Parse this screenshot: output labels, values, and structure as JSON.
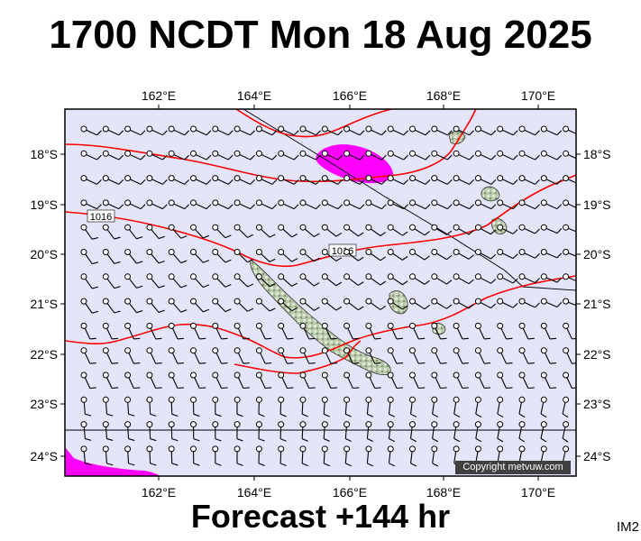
{
  "title": "1700 NCDT Mon 18 Aug 2025",
  "footer": "Forecast +144 hr",
  "tag": "IM2",
  "copyright": "Copyright metvuw.com",
  "axes": {
    "lon_ticks": [
      "162°E",
      "164°E",
      "166°E",
      "168°E",
      "170°E"
    ],
    "lat_ticks": [
      "18°S",
      "19°S",
      "20°S",
      "21°S",
      "22°S",
      "23°S",
      "24°S"
    ]
  },
  "isobar_labels": [
    "1016",
    "1016"
  ],
  "colors": {
    "sea": "#e4e4fa",
    "isobar": "#ff0000",
    "rain": "#ff00ff",
    "land": "#b8c8a8",
    "frame": "#000000"
  }
}
